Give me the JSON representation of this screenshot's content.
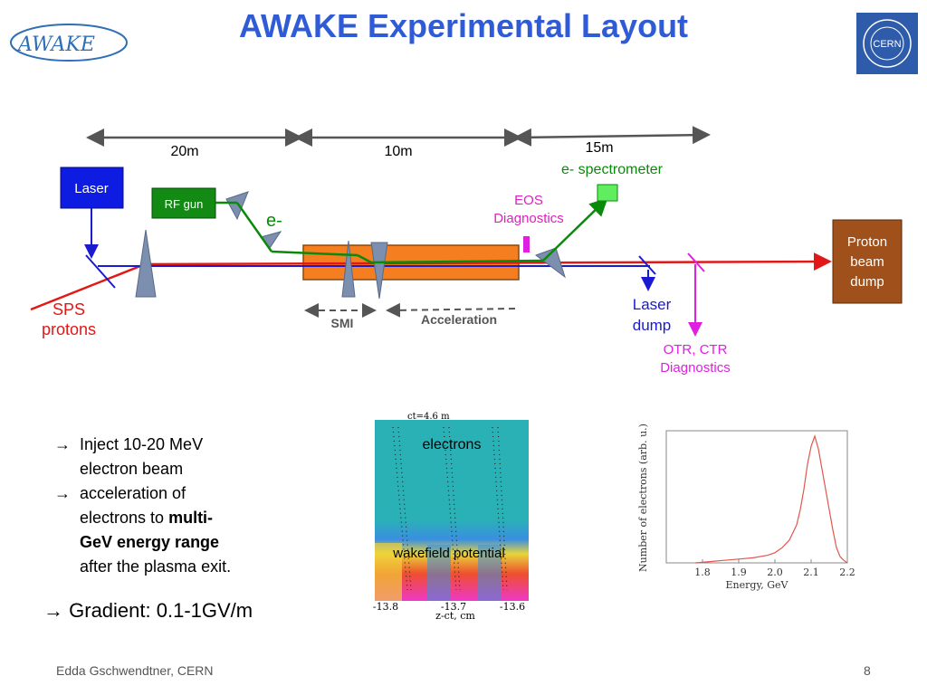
{
  "slide": {
    "title": "AWAKE Experimental Layout",
    "logo_text": "AWAKE",
    "cern_logo_text": "CERN",
    "footer": "Edda Gschwendtner, CERN",
    "page_number": "8"
  },
  "diagram": {
    "dist_20m": "20m",
    "dist_10m": "10m",
    "dist_15m": "15m",
    "spectrometer": "e- spectrometer",
    "laser": "Laser",
    "rf_gun": "RF gun",
    "electron": "e-",
    "eos_1": "EOS",
    "eos_2": "Diagnostics",
    "proton_dump_1": "Proton",
    "proton_dump_2": "beam",
    "proton_dump_3": "dump",
    "sps_1": "SPS",
    "sps_2": "protons",
    "smi": "SMI",
    "acceleration": "Acceleration",
    "laser_dump_1": "Laser",
    "laser_dump_2": "dump",
    "otr_1": "OTR, CTR",
    "otr_2": "Diagnostics"
  },
  "text": {
    "bullet1_a": "Inject 10-20 MeV",
    "bullet1_b": "electron beam",
    "bullet2_a": "acceleration of",
    "bullet2_b": "electrons to ",
    "bullet2_bold1": "multi-",
    "bullet2_bold2": "GeV energy range",
    "bullet2_c": "after the plasma exit.",
    "gradient": "Gradient: 0.1-1GV/m",
    "arrow": "→"
  },
  "sim": {
    "header": "ct=4.6 m",
    "electrons": "electrons",
    "wakefield": "wakefield potential",
    "xlabel": "z-ct, cm",
    "ticks": [
      "-13.8",
      "-13.7",
      "-13.6"
    ]
  },
  "chart_data": {
    "type": "line",
    "xlabel": "Energy, GeV",
    "ylabel": "Number of electrons (arb. u.)",
    "xlim": [
      1.7,
      2.2
    ],
    "x_ticks": [
      1.8,
      1.9,
      2.0,
      2.1,
      2.2
    ],
    "tick_labels": [
      "1.8",
      "1.9",
      "2.0",
      "2.1",
      "2.2"
    ],
    "color": "#e0574f",
    "series": [
      {
        "x": [
          1.78,
          1.82,
          1.86,
          1.9,
          1.94,
          1.98,
          2.0,
          2.02,
          2.04,
          2.06,
          2.07,
          2.08,
          2.09,
          2.1,
          2.11,
          2.12,
          2.13,
          2.14,
          2.15,
          2.16,
          2.17,
          2.18,
          2.19,
          2.2
        ],
        "values": [
          0.0,
          0.01,
          0.02,
          0.03,
          0.04,
          0.06,
          0.08,
          0.12,
          0.18,
          0.3,
          0.42,
          0.58,
          0.78,
          0.92,
          1.0,
          0.9,
          0.74,
          0.58,
          0.42,
          0.26,
          0.12,
          0.05,
          0.02,
          0.0
        ]
      }
    ]
  }
}
